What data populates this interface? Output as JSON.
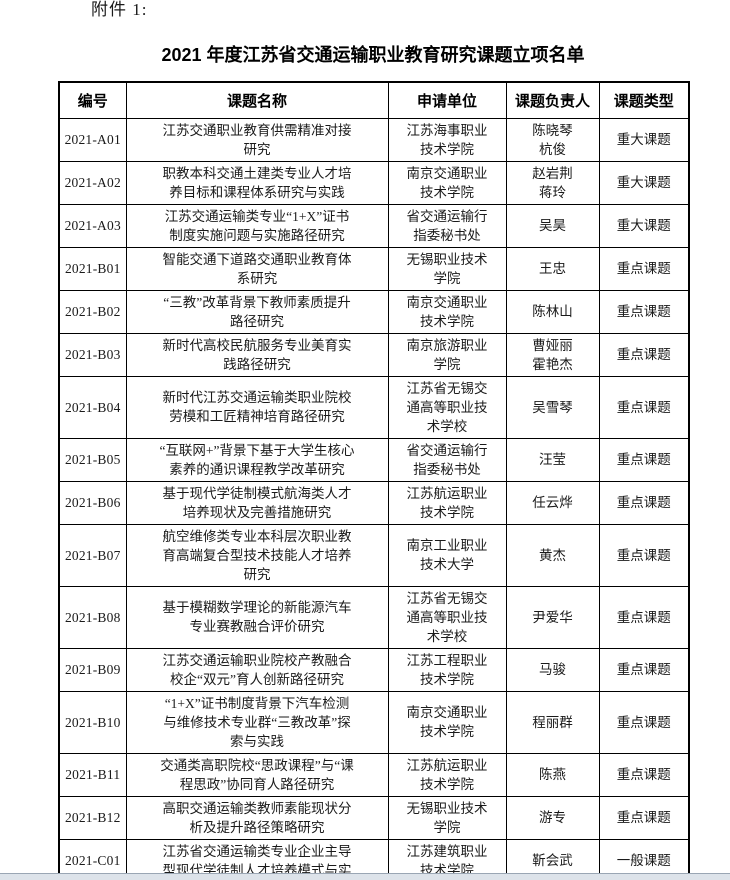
{
  "page": {
    "attachment_label": "附件 1:",
    "title": "2021 年度江苏省交通运输职业教育研究课题立项名单"
  },
  "colors": {
    "text": "#1a1a1a",
    "table_border": "#000000",
    "page_bg": "#ffffff",
    "bottom_bar_bg": "#dde3ea",
    "bottom_bar_line": "#9aa6b4"
  },
  "table": {
    "headers": [
      "编号",
      "课题名称",
      "申请单位",
      "课题负责人",
      "课题类型"
    ],
    "rows": [
      {
        "id": "2021-A01",
        "title_lines": [
          "江苏交通职业教育供需精准对接",
          "研究"
        ],
        "unit_lines": [
          "江苏海事职业",
          "技术学院"
        ],
        "leader_lines": [
          "陈晓琴",
          "杭俊"
        ],
        "type": "重大课题"
      },
      {
        "id": "2021-A02",
        "title_lines": [
          "职教本科交通土建类专业人才培",
          "养目标和课程体系研究与实践"
        ],
        "unit_lines": [
          "南京交通职业",
          "技术学院"
        ],
        "leader_lines": [
          "赵岩荆",
          "蒋玲"
        ],
        "type": "重大课题"
      },
      {
        "id": "2021-A03",
        "title_lines": [
          "江苏交通运输类专业“1+X”证书",
          "制度实施问题与实施路径研究"
        ],
        "unit_lines": [
          "省交通运输行",
          "指委秘书处"
        ],
        "leader_lines": [
          "吴昊"
        ],
        "type": "重大课题"
      },
      {
        "id": "2021-B01",
        "title_lines": [
          "智能交通下道路交通职业教育体",
          "系研究"
        ],
        "unit_lines": [
          "无锡职业技术",
          "学院"
        ],
        "leader_lines": [
          "王忠"
        ],
        "type": "重点课题"
      },
      {
        "id": "2021-B02",
        "title_lines": [
          "“三教”改革背景下教师素质提升",
          "路径研究"
        ],
        "unit_lines": [
          "南京交通职业",
          "技术学院"
        ],
        "leader_lines": [
          "陈林山"
        ],
        "type": "重点课题"
      },
      {
        "id": "2021-B03",
        "title_lines": [
          "新时代高校民航服务专业美育实",
          "践路径研究"
        ],
        "unit_lines": [
          "南京旅游职业",
          "学院"
        ],
        "leader_lines": [
          "曹娅丽",
          "霍艳杰"
        ],
        "type": "重点课题"
      },
      {
        "id": "2021-B04",
        "title_lines": [
          "新时代江苏交通运输类职业院校",
          "劳模和工匠精神培育路径研究"
        ],
        "unit_lines": [
          "江苏省无锡交",
          "通高等职业技",
          "术学校"
        ],
        "leader_lines": [
          "吴雪琴"
        ],
        "type": "重点课题"
      },
      {
        "id": "2021-B05",
        "title_lines": [
          "“互联网+”背景下基于大学生核心",
          "素养的通识课程教学改革研究"
        ],
        "unit_lines": [
          "省交通运输行",
          "指委秘书处"
        ],
        "leader_lines": [
          "汪莹"
        ],
        "type": "重点课题"
      },
      {
        "id": "2021-B06",
        "title_lines": [
          "基于现代学徒制模式航海类人才",
          "培养现状及完善措施研究"
        ],
        "unit_lines": [
          "江苏航运职业",
          "技术学院"
        ],
        "leader_lines": [
          "任云烨"
        ],
        "type": "重点课题"
      },
      {
        "id": "2021-B07",
        "title_lines": [
          "航空维修类专业本科层次职业教",
          "育高端复合型技术技能人才培养",
          "研究"
        ],
        "unit_lines": [
          "南京工业职业",
          "技术大学"
        ],
        "leader_lines": [
          "黄杰"
        ],
        "type": "重点课题"
      },
      {
        "id": "2021-B08",
        "title_lines": [
          "基于模糊数学理论的新能源汽车",
          "专业赛教融合评价研究"
        ],
        "unit_lines": [
          "江苏省无锡交",
          "通高等职业技",
          "术学校"
        ],
        "leader_lines": [
          "尹爱华"
        ],
        "type": "重点课题"
      },
      {
        "id": "2021-B09",
        "title_lines": [
          "江苏交通运输职业院校产教融合",
          "校企“双元”育人创新路径研究"
        ],
        "unit_lines": [
          "江苏工程职业",
          "技术学院"
        ],
        "leader_lines": [
          "马骏"
        ],
        "type": "重点课题"
      },
      {
        "id": "2021-B10",
        "title_lines": [
          "“1+X”证书制度背景下汽车检测",
          "与维修技术专业群“三教改革”探",
          "索与实践"
        ],
        "unit_lines": [
          "南京交通职业",
          "技术学院"
        ],
        "leader_lines": [
          "程丽群"
        ],
        "type": "重点课题"
      },
      {
        "id": "2021-B11",
        "title_lines": [
          "交通类高职院校“思政课程”与“课",
          "程思政”协同育人路径研究"
        ],
        "unit_lines": [
          "江苏航运职业",
          "技术学院"
        ],
        "leader_lines": [
          "陈燕"
        ],
        "type": "重点课题"
      },
      {
        "id": "2021-B12",
        "title_lines": [
          "高职交通运输类教师素能现状分",
          "析及提升路径策略研究"
        ],
        "unit_lines": [
          "无锡职业技术",
          "学院"
        ],
        "leader_lines": [
          "游专"
        ],
        "type": "重点课题"
      },
      {
        "id": "2021-C01",
        "title_lines": [
          "江苏省交通运输类专业企业主导",
          "型现代学徒制人才培养模式与实"
        ],
        "unit_lines": [
          "江苏建筑职业",
          "技术学院"
        ],
        "leader_lines": [
          "靳会武"
        ],
        "type": "一般课题"
      }
    ]
  }
}
